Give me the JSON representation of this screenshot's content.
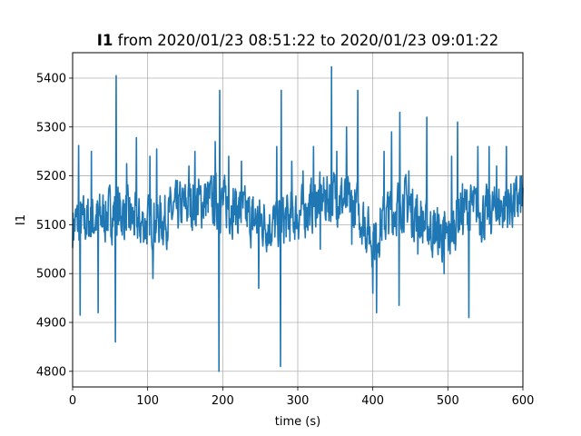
{
  "chart_data": {
    "type": "line",
    "title_bold": "I1",
    "title_rest": " from 2020/01/23 08:51:22 to 2020/01/23 09:01:22",
    "xlabel": "time (s)",
    "ylabel": "I1",
    "xlim": [
      0,
      600
    ],
    "ylim": [
      4768,
      5452
    ],
    "xticks": [
      0,
      100,
      200,
      300,
      400,
      500,
      600
    ],
    "yticks": [
      4800,
      4900,
      5000,
      5100,
      5200,
      5300,
      5400
    ],
    "grid": true,
    "line_color": "#1f77b4",
    "series": [
      {
        "baseline": [
          [
            0,
            5100
          ],
          [
            30,
            5110
          ],
          [
            60,
            5130
          ],
          [
            90,
            5100
          ],
          [
            120,
            5110
          ],
          [
            150,
            5140
          ],
          [
            180,
            5150
          ],
          [
            210,
            5140
          ],
          [
            240,
            5110
          ],
          [
            270,
            5100
          ],
          [
            300,
            5120
          ],
          [
            330,
            5150
          ],
          [
            350,
            5160
          ],
          [
            380,
            5130
          ],
          [
            400,
            5070
          ],
          [
            420,
            5120
          ],
          [
            440,
            5150
          ],
          [
            470,
            5100
          ],
          [
            500,
            5070
          ],
          [
            520,
            5140
          ],
          [
            550,
            5120
          ],
          [
            580,
            5140
          ],
          [
            600,
            5150
          ]
        ],
        "spikes": [
          [
            8,
            5262
          ],
          [
            10,
            4915
          ],
          [
            25,
            5250
          ],
          [
            34,
            4920
          ],
          [
            57,
            4860
          ],
          [
            58,
            5405
          ],
          [
            72,
            5225
          ],
          [
            85,
            5278
          ],
          [
            103,
            5240
          ],
          [
            107,
            4990
          ],
          [
            112,
            5255
          ],
          [
            155,
            5220
          ],
          [
            163,
            5250
          ],
          [
            185,
            5200
          ],
          [
            190,
            5270
          ],
          [
            195,
            4800
          ],
          [
            196,
            5375
          ],
          [
            208,
            5240
          ],
          [
            225,
            5230
          ],
          [
            240,
            5090
          ],
          [
            248,
            4970
          ],
          [
            272,
            5260
          ],
          [
            277,
            4810
          ],
          [
            278,
            5375
          ],
          [
            292,
            5230
          ],
          [
            307,
            5210
          ],
          [
            321,
            5260
          ],
          [
            330,
            5050
          ],
          [
            345,
            5423
          ],
          [
            352,
            5250
          ],
          [
            365,
            5300
          ],
          [
            372,
            5060
          ],
          [
            380,
            5375
          ],
          [
            393,
            5080
          ],
          [
            400,
            4960
          ],
          [
            405,
            4920
          ],
          [
            415,
            5250
          ],
          [
            425,
            5290
          ],
          [
            435,
            4935
          ],
          [
            436,
            5330
          ],
          [
            448,
            5210
          ],
          [
            460,
            5040
          ],
          [
            472,
            5320
          ],
          [
            480,
            5060
          ],
          [
            495,
            5000
          ],
          [
            505,
            5240
          ],
          [
            513,
            5310
          ],
          [
            520,
            5080
          ],
          [
            528,
            4910
          ],
          [
            540,
            5260
          ],
          [
            555,
            5260
          ],
          [
            565,
            5220
          ],
          [
            578,
            5260
          ],
          [
            590,
            5170
          ],
          [
            598,
            5200
          ]
        ]
      }
    ]
  }
}
